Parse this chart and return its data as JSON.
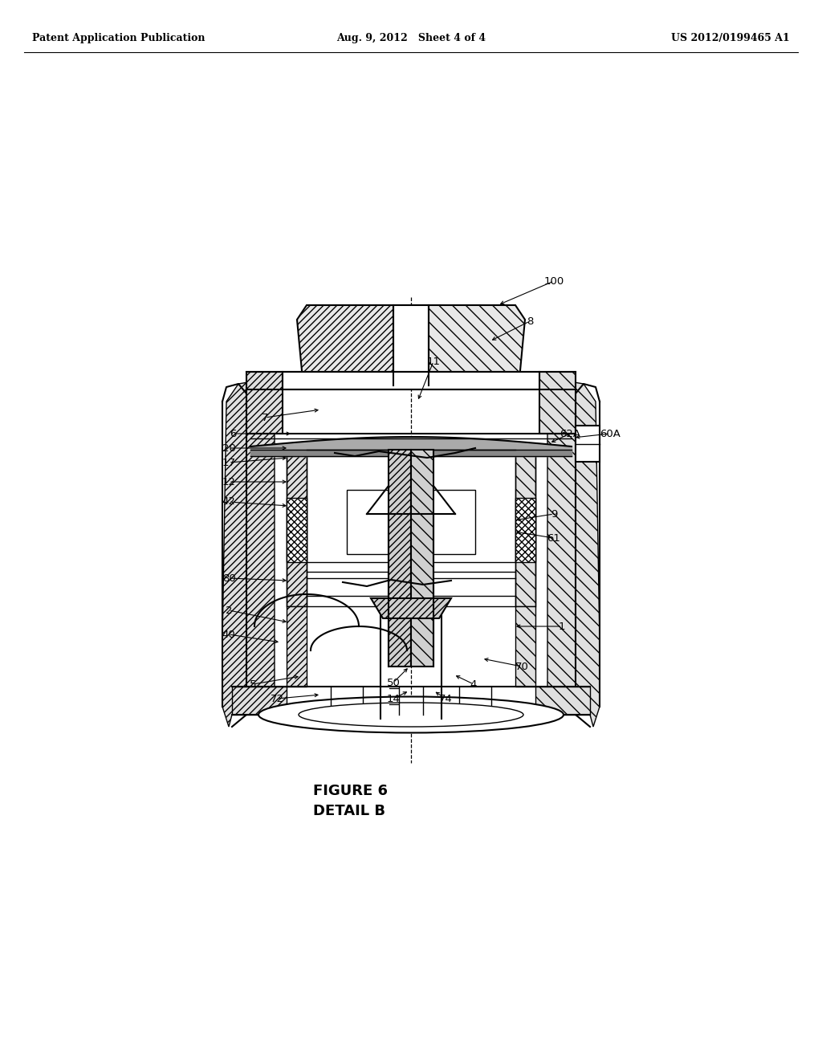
{
  "bg_color": "#ffffff",
  "header_left": "Patent Application Publication",
  "header_center": "Aug. 9, 2012   Sheet 4 of 4",
  "header_right": "US 2012/0199465 A1",
  "figure_caption_line1": "FIGURE 6",
  "figure_caption_line2": "DETAIL B",
  "line_color": "#000000"
}
